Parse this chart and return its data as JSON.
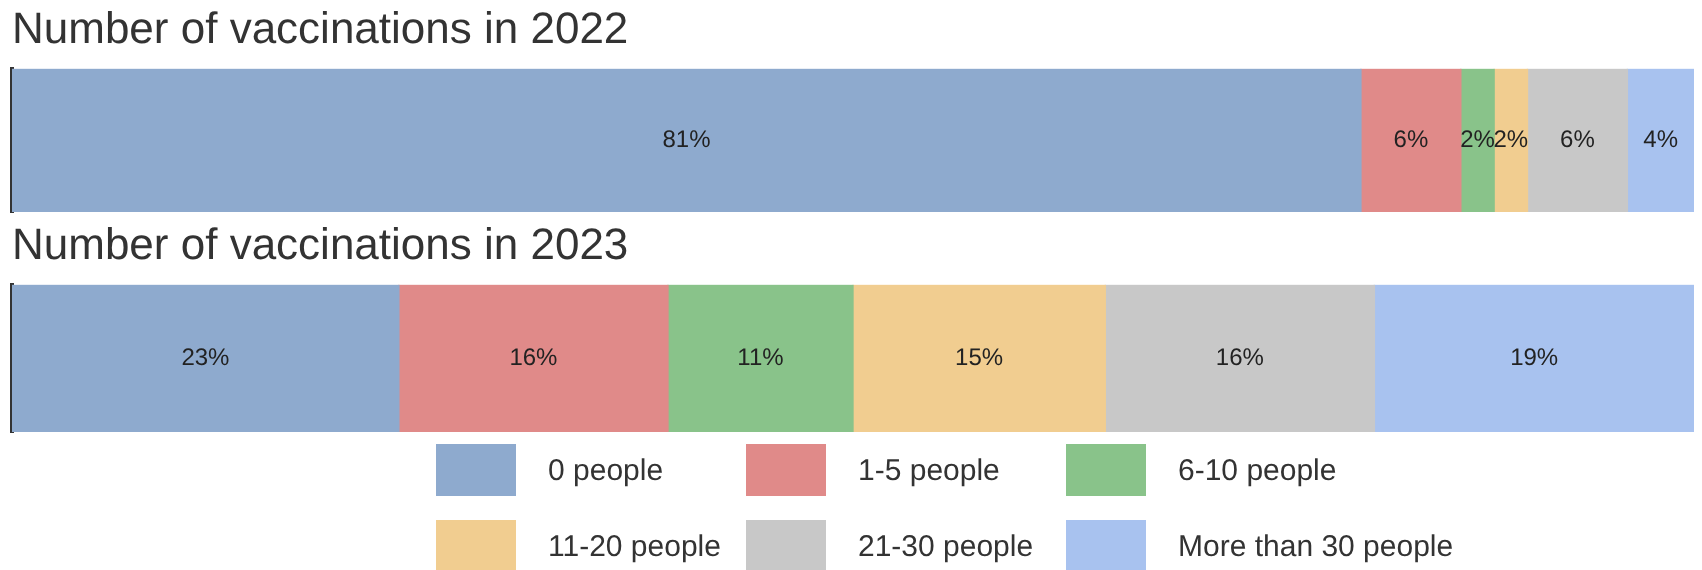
{
  "chart_data": [
    {
      "type": "bar",
      "title": "Number of vaccinations in 2022",
      "orientation": "horizontal",
      "stacked": true,
      "categories": [
        null
      ],
      "legend": false,
      "series": [
        {
          "color": "#8eaace",
          "values": [
            81
          ],
          "value_labels": [
            "81%"
          ]
        },
        {
          "color": "#e08a89",
          "values": [
            6
          ],
          "value_labels": [
            "6%"
          ]
        },
        {
          "color": "#89c38a",
          "values": [
            2
          ],
          "value_labels": [
            "2%"
          ]
        },
        {
          "color": "#f1cd90",
          "values": [
            2
          ],
          "value_labels": [
            "2%"
          ]
        },
        {
          "color": "#c8c8c8",
          "values": [
            6
          ],
          "value_labels": [
            "6%"
          ]
        },
        {
          "color": "#a8c2ef",
          "values": [
            4
          ],
          "value_labels": [
            "4%"
          ]
        }
      ]
    },
    {
      "type": "bar",
      "title": "Number of vaccinations in 2023",
      "orientation": "horizontal",
      "stacked": true,
      "categories": [
        null
      ],
      "legend": "bottom",
      "series": [
        {
          "name": "0 people",
          "color": "#8eaace",
          "values": [
            23
          ],
          "value_labels": [
            "23%"
          ]
        },
        {
          "name": "1-5 people",
          "color": "#e08a89",
          "values": [
            16
          ],
          "value_labels": [
            "16%"
          ]
        },
        {
          "name": "6-10 people",
          "color": "#89c38a",
          "values": [
            11
          ],
          "value_labels": [
            "11%"
          ]
        },
        {
          "name": "11-20 people",
          "color": "#f1cd90",
          "values": [
            15
          ],
          "value_labels": [
            "15%"
          ]
        },
        {
          "name": "21-30 people",
          "color": "#c8c8c8",
          "values": [
            16
          ],
          "value_labels": [
            "16%"
          ]
        },
        {
          "name": "More than 30 people",
          "color": "#a8c2ef",
          "values": [
            19
          ],
          "value_labels": [
            "19%"
          ]
        }
      ]
    }
  ]
}
